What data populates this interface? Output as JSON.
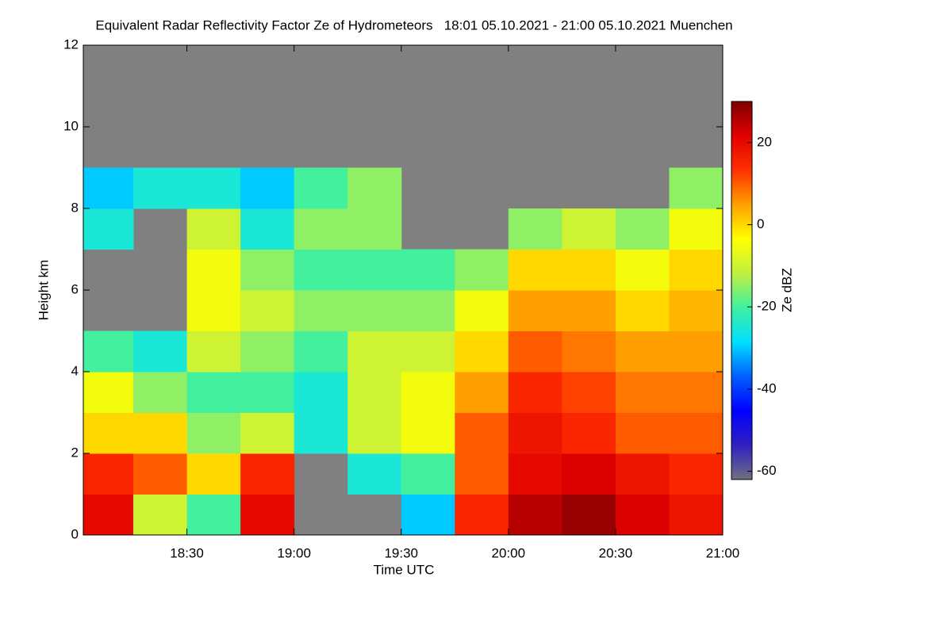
{
  "chart_data": {
    "type": "heatmap",
    "title": "Equivalent Radar Reflectivity Factor Ze of Hydrometeors   18:01 05.10.2021 - 21:00 05.10.2021 Muenchen",
    "x_label": "Time UTC",
    "y_label": "Height km",
    "colorbar_label": "Ze dBZ",
    "xbins": [
      1081,
      1095,
      1110,
      1125,
      1140,
      1155,
      1170,
      1185,
      1200,
      1215,
      1230,
      1245,
      1260
    ],
    "ybins": [
      0,
      1,
      2,
      3,
      4,
      5,
      6,
      7,
      8,
      9,
      10,
      11,
      12
    ],
    "z": [
      [
        20,
        -10,
        -20,
        20,
        null,
        null,
        -30,
        15,
        25,
        28,
        22,
        18
      ],
      [
        15,
        10,
        0,
        15,
        null,
        -25,
        -20,
        10,
        20,
        22,
        18,
        15
      ],
      [
        0,
        0,
        -15,
        -10,
        -25,
        -10,
        -5,
        10,
        18,
        15,
        10,
        10
      ],
      [
        -5,
        -15,
        -20,
        -20,
        -25,
        -10,
        -5,
        5,
        15,
        12,
        8,
        8
      ],
      [
        -20,
        -25,
        -10,
        -15,
        -20,
        -10,
        -10,
        0,
        10,
        8,
        5,
        5
      ],
      [
        null,
        null,
        -5,
        -10,
        -15,
        -15,
        -15,
        -5,
        5,
        5,
        0,
        3
      ],
      [
        null,
        null,
        -5,
        -15,
        -20,
        -20,
        -20,
        -15,
        0,
        0,
        -5,
        0
      ],
      [
        -25,
        null,
        -10,
        -25,
        -15,
        -15,
        null,
        null,
        -15,
        -10,
        -15,
        -5
      ],
      [
        -30,
        -25,
        -25,
        -30,
        -20,
        -15,
        null,
        null,
        null,
        null,
        null,
        -15
      ],
      [
        null,
        null,
        null,
        null,
        null,
        null,
        null,
        null,
        null,
        null,
        null,
        null
      ],
      [
        null,
        null,
        null,
        null,
        null,
        null,
        null,
        null,
        null,
        null,
        null,
        null
      ],
      [
        null,
        null,
        null,
        null,
        null,
        null,
        null,
        null,
        null,
        null,
        null,
        null
      ]
    ],
    "xlim": [
      1081,
      1260
    ],
    "ylim": [
      0,
      12
    ],
    "xticks": [
      {
        "value": 1110,
        "label": "18:30"
      },
      {
        "value": 1140,
        "label": "19:00"
      },
      {
        "value": 1170,
        "label": "19:30"
      },
      {
        "value": 1200,
        "label": "20:00"
      },
      {
        "value": 1230,
        "label": "20:30"
      },
      {
        "value": 1260,
        "label": "21:00"
      }
    ],
    "yticks": [
      0,
      2,
      4,
      6,
      8,
      10,
      12
    ],
    "clim": [
      -62,
      30
    ],
    "cticks": [
      20,
      0,
      -20,
      -40,
      -60
    ],
    "background_color": "#808080",
    "colormap": [
      "#707080",
      "#3020c0",
      "#0000ff",
      "#0060ff",
      "#00e0ff",
      "#40f0a0",
      "#c0f040",
      "#ffff00",
      "#ffa000",
      "#ff3000",
      "#e00000",
      "#800000"
    ]
  }
}
